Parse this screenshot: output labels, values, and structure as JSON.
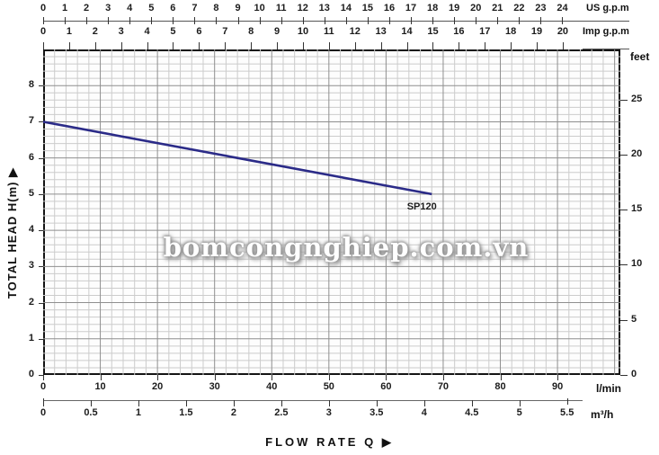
{
  "watermark": {
    "text": "bomcongnghiep.com.vn"
  },
  "colors": {
    "curve": "#2b2b88",
    "grid_minor": "#cccccc",
    "grid_major": "#8f8f8f",
    "border": "#141414",
    "text": "#111111"
  },
  "chart_data": {
    "type": "line",
    "title": "",
    "xlabel": "FLOW  RATE Q",
    "xlabel_arrow": "▶",
    "ylabel": "TOTAL HEAD H(m)",
    "ylabel_arrow": "▶",
    "legend_position": "none",
    "grid": {
      "on": true,
      "minor_x_lmin": 2,
      "minor_y_m": 0.2,
      "major_x_lmin": 10,
      "major_y_m": 1
    },
    "series": [
      {
        "name": "SP120",
        "color": "#2b2b88",
        "units": "x in l/min, y in m",
        "points": [
          [
            0,
            7.0
          ],
          [
            34,
            6.0
          ],
          [
            68,
            5.0
          ]
        ],
        "label": {
          "text": "SP120",
          "at_lmin": 66.5,
          "at_m": 4.62
        }
      }
    ],
    "axes": {
      "top_outer": {
        "unit": "US g.p.m",
        "ticks": [
          0,
          1,
          2,
          3,
          4,
          5,
          6,
          7,
          8,
          9,
          10,
          11,
          12,
          13,
          14,
          15,
          16,
          17,
          18,
          19,
          20,
          21,
          22,
          23,
          24
        ],
        "lmin_per_unit": 3.7854
      },
      "top_inner": {
        "unit": "Imp g.p.m",
        "ticks": [
          0,
          1,
          2,
          3,
          4,
          5,
          6,
          7,
          8,
          9,
          10,
          11,
          12,
          13,
          14,
          15,
          16,
          17,
          18,
          19,
          20
        ],
        "lmin_per_unit": 4.5461
      },
      "bottom_inner": {
        "unit": "l/min",
        "ticks": [
          0,
          10,
          20,
          30,
          40,
          50,
          60,
          70,
          80,
          90
        ],
        "range": [
          0,
          101
        ],
        "lmin_per_unit": 1
      },
      "bottom_outer": {
        "unit": "m³/h",
        "ticks": [
          0,
          0.5,
          1,
          1.5,
          2,
          2.5,
          3,
          3.5,
          4,
          4.5,
          5,
          5.5
        ],
        "lmin_per_unit": 16.6667
      },
      "left": {
        "unit": "TOTAL HEAD H(m)",
        "ticks": [
          0,
          1,
          2,
          3,
          4,
          5,
          6,
          7,
          8
        ],
        "range": [
          0,
          9
        ]
      },
      "right": {
        "unit": "feet",
        "ticks": [
          0,
          5,
          10,
          15,
          20,
          25
        ],
        "m_per_unit": 0.3048
      }
    }
  }
}
